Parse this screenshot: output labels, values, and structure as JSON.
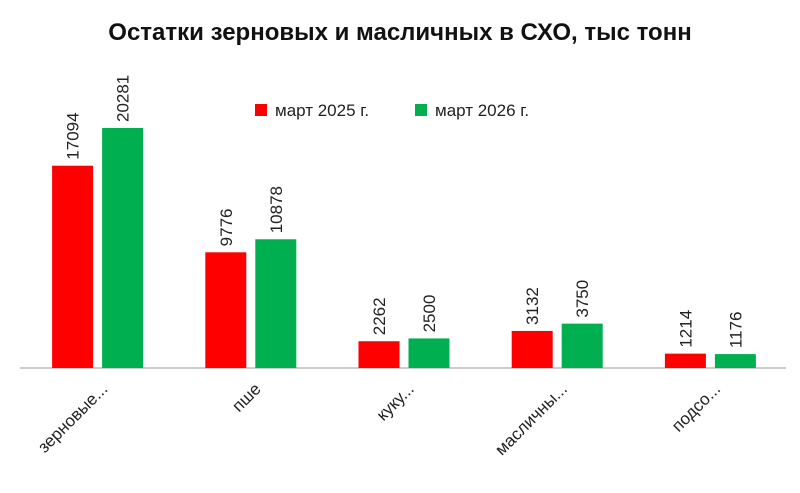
{
  "chart_data": {
    "type": "bar",
    "title": "Остатки зерновых и масличных  в СХО, тыс тонн",
    "categories": [
      "зерновые...",
      "пше",
      "куку...",
      "масличны...",
      "подсо..."
    ],
    "series": [
      {
        "name": "март 2025 г.",
        "color": "#ff0000",
        "values": [
          17094,
          9776,
          2262,
          3132,
          1214
        ]
      },
      {
        "name": "март 2026 г.",
        "color": "#00b050",
        "values": [
          20281,
          10878,
          2500,
          3750,
          1176
        ]
      }
    ]
  }
}
